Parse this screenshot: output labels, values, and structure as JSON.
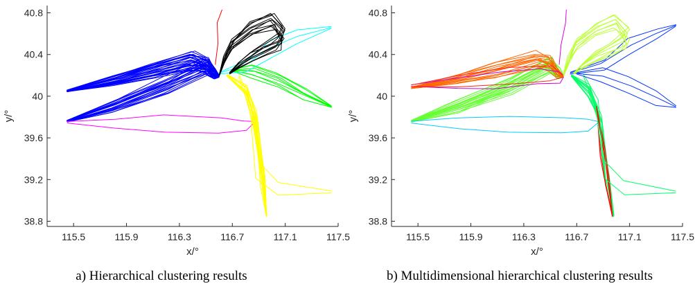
{
  "chart_data": [
    {
      "type": "line",
      "caption": "a) Hierarchical clustering results",
      "xlabel": "x/°",
      "ylabel": "y/°",
      "xlim": [
        115.3,
        117.5
      ],
      "ylim": [
        38.75,
        40.87
      ],
      "xticks": [
        "115.5",
        "115.9",
        "116.3",
        "116.7",
        "117.1",
        "117.5"
      ],
      "yticks": [
        "38.8",
        "39.2",
        "39.6",
        "40",
        "40.4",
        "40.8"
      ],
      "grid": false,
      "legend": "none",
      "series": [
        {
          "color": "#0000ff",
          "copies": 26,
          "x": [
            115.45,
            115.8,
            116.1,
            116.4,
            116.5,
            116.56,
            116.6
          ],
          "y": [
            40.05,
            40.15,
            40.25,
            40.34,
            40.3,
            40.22,
            40.19
          ]
        },
        {
          "color": "#0000ff",
          "copies": 18,
          "x": [
            115.45,
            115.8,
            116.2,
            116.5,
            116.56,
            116.6
          ],
          "y": [
            39.76,
            39.9,
            40.1,
            40.28,
            40.22,
            40.19
          ]
        },
        {
          "color": "#ff00ff",
          "copies": 2,
          "x": [
            115.45,
            115.8,
            116.2,
            116.6,
            116.8,
            116.86
          ],
          "y": [
            39.75,
            39.74,
            39.73,
            39.72,
            39.72,
            39.75
          ]
        },
        {
          "color": "#ffff00",
          "copies": 14,
          "x": [
            116.66,
            116.8,
            116.87,
            116.93,
            116.96
          ],
          "y": [
            40.2,
            40.05,
            39.8,
            39.2,
            38.85
          ]
        },
        {
          "color": "#ffff00",
          "copies": 2,
          "x": [
            116.75,
            116.85,
            116.9,
            117.05,
            117.45
          ],
          "y": [
            40.2,
            39.9,
            39.3,
            39.12,
            39.08
          ]
        },
        {
          "color": "#00ff00",
          "copies": 8,
          "x": [
            116.7,
            116.85,
            117.05,
            117.25,
            117.45
          ],
          "y": [
            40.25,
            40.24,
            40.15,
            40.02,
            39.9
          ]
        },
        {
          "color": "#00ffff",
          "copies": 3,
          "x": [
            116.6,
            116.8,
            117.0,
            117.2,
            117.45
          ],
          "y": [
            40.22,
            40.3,
            40.45,
            40.57,
            40.66
          ]
        },
        {
          "color": "#000000",
          "copies": 10,
          "x": [
            116.6,
            116.64,
            116.7,
            116.85,
            117.0,
            117.08,
            117.05,
            116.95,
            116.85,
            116.75,
            116.68
          ],
          "y": [
            40.2,
            40.35,
            40.5,
            40.65,
            40.72,
            40.6,
            40.52,
            40.45,
            40.38,
            40.3,
            40.22
          ]
        },
        {
          "color": "#ff0000",
          "copies": 1,
          "x": [
            116.57,
            116.59,
            116.6,
            116.62
          ],
          "y": [
            40.3,
            40.5,
            40.7,
            40.83
          ]
        }
      ]
    },
    {
      "type": "line",
      "caption": "b) Multidimensional hierarchical clustering results",
      "xlabel": "x/°",
      "ylabel": "y/°",
      "xlim": [
        115.3,
        117.5
      ],
      "ylim": [
        38.75,
        40.87
      ],
      "xticks": [
        "115.5",
        "115.9",
        "116.3",
        "116.7",
        "117.1",
        "117.5"
      ],
      "yticks": [
        "38.8",
        "39.2",
        "39.6",
        "40",
        "40.4",
        "40.8"
      ],
      "grid": false,
      "legend": "none",
      "series": [
        {
          "color": "#66ff33",
          "copies": 20,
          "x": [
            115.45,
            115.8,
            116.2,
            116.5,
            116.56,
            116.6
          ],
          "y": [
            39.76,
            39.9,
            40.1,
            40.3,
            40.22,
            40.19
          ]
        },
        {
          "color": "#ff6600",
          "copies": 14,
          "x": [
            115.45,
            115.8,
            116.1,
            116.4,
            116.5,
            116.56,
            116.6
          ],
          "y": [
            40.08,
            40.16,
            40.25,
            40.35,
            40.32,
            40.22,
            40.19
          ]
        },
        {
          "color": "#cc00cc",
          "copies": 2,
          "x": [
            115.45,
            115.8,
            116.1,
            116.4,
            116.56,
            116.6
          ],
          "y": [
            40.1,
            40.12,
            40.15,
            40.2,
            40.18,
            40.19
          ]
        },
        {
          "color": "#ff2222",
          "copies": 2,
          "x": [
            115.45,
            115.8,
            116.2,
            116.5,
            116.6
          ],
          "y": [
            40.1,
            40.14,
            40.2,
            40.22,
            40.19
          ]
        },
        {
          "color": "#00ccff",
          "copies": 2,
          "x": [
            115.45,
            115.8,
            116.2,
            116.6,
            116.8,
            116.86
          ],
          "y": [
            39.75,
            39.74,
            39.73,
            39.72,
            39.72,
            39.75
          ]
        },
        {
          "color": "#00ff66",
          "copies": 10,
          "x": [
            116.66,
            116.8,
            116.87,
            116.93,
            116.98
          ],
          "y": [
            40.2,
            40.05,
            39.8,
            39.2,
            38.85
          ]
        },
        {
          "color": "#ff0000",
          "copies": 5,
          "x": [
            116.85,
            116.9,
            116.93,
            116.97
          ],
          "y": [
            39.9,
            39.5,
            39.2,
            38.85
          ]
        },
        {
          "color": "#00ff66",
          "copies": 2,
          "x": [
            116.75,
            116.85,
            116.9,
            117.05,
            117.45
          ],
          "y": [
            40.2,
            39.9,
            39.3,
            39.12,
            39.08
          ]
        },
        {
          "color": "#0033ff",
          "copies": 3,
          "x": [
            116.65,
            116.9,
            117.1,
            117.3,
            117.45
          ],
          "y": [
            40.22,
            40.3,
            40.48,
            40.6,
            40.68
          ]
        },
        {
          "color": "#0033ff",
          "copies": 3,
          "x": [
            116.7,
            116.9,
            117.1,
            117.3,
            117.45
          ],
          "y": [
            40.22,
            40.2,
            40.1,
            39.98,
            39.9
          ]
        },
        {
          "color": "#bbff33",
          "copies": 8,
          "x": [
            116.6,
            116.64,
            116.7,
            116.85,
            117.0,
            117.08,
            117.05,
            116.95,
            116.85,
            116.75,
            116.68
          ],
          "y": [
            40.2,
            40.35,
            40.5,
            40.65,
            40.72,
            40.6,
            40.52,
            40.45,
            40.38,
            40.3,
            40.22
          ]
        },
        {
          "color": "#dd00dd",
          "copies": 1,
          "x": [
            116.57,
            116.59,
            116.6,
            116.62
          ],
          "y": [
            40.3,
            40.5,
            40.7,
            40.83
          ]
        }
      ]
    }
  ]
}
